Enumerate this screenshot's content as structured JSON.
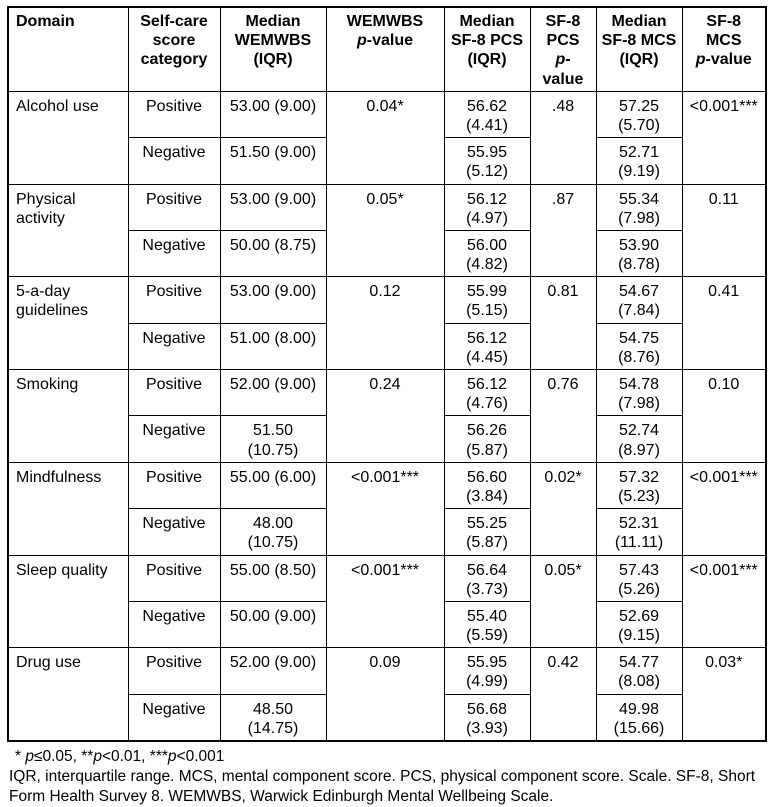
{
  "table": {
    "headers": {
      "domain": "Domain",
      "category": [
        "Self-care",
        "score",
        "category"
      ],
      "wemwbs": [
        "Median",
        "WEMWBS",
        "(IQR)"
      ],
      "wemwbs_p_line1": "WEMWBS",
      "wemwbs_p_line2_parts": [
        [
          "p",
          true
        ],
        [
          "-value",
          false
        ]
      ],
      "pcs": [
        "Median",
        "SF-8",
        "PCS",
        "(IQR)"
      ],
      "pcs_p_line1": "SF-8",
      "pcs_p_line2": "PCS",
      "pcs_p_line3_parts": [
        [
          "p",
          true
        ],
        [
          "-",
          false
        ]
      ],
      "pcs_p_line4": "value",
      "mcs": [
        "Median",
        "SF-8",
        "MCS",
        "(IQR)"
      ],
      "mcs_p_line1": "SF-8",
      "mcs_p_line2": "MCS",
      "mcs_p_line3_parts": [
        [
          "p",
          true
        ],
        [
          "-value",
          false
        ]
      ]
    },
    "rows": [
      {
        "domain": "Alcohol use",
        "positive_label": "Positive",
        "negative_label": "Negative",
        "wemwbs_pos": [
          "53.00 (9.00)"
        ],
        "wemwbs_neg": [
          "51.50 (9.00)"
        ],
        "wemwbs_p": "0.04*",
        "pcs_pos": [
          "56.62",
          "(4.41)"
        ],
        "pcs_neg": [
          "55.95",
          "(5.12)"
        ],
        "pcs_p": ".48",
        "mcs_pos": [
          "57.25",
          "(5.70)"
        ],
        "mcs_neg": [
          "52.71",
          "(9.19)"
        ],
        "mcs_p": "<0.001***"
      },
      {
        "domain": "Physical activity",
        "positive_label": "Positive",
        "negative_label": "Negative",
        "wemwbs_pos": [
          "53.00 (9.00)"
        ],
        "wemwbs_neg": [
          "50.00 (8.75)"
        ],
        "wemwbs_p": "0.05*",
        "pcs_pos": [
          "56.12",
          "(4.97)"
        ],
        "pcs_neg": [
          "56.00",
          "(4.82)"
        ],
        "pcs_p": ".87",
        "mcs_pos": [
          "55.34",
          "(7.98)"
        ],
        "mcs_neg": [
          "53.90",
          "(8.78)"
        ],
        "mcs_p": "0.11"
      },
      {
        "domain": "5-a-day guidelines",
        "positive_label": "Positive",
        "negative_label": "Negative",
        "wemwbs_pos": [
          "53.00 (9.00)"
        ],
        "wemwbs_neg": [
          "51.00 (8.00)"
        ],
        "wemwbs_p": "0.12",
        "pcs_pos": [
          "55.99",
          "(5.15)"
        ],
        "pcs_neg": [
          "56.12",
          "(4.45)"
        ],
        "pcs_p": "0.81",
        "mcs_pos": [
          "54.67",
          "(7.84)"
        ],
        "mcs_neg": [
          "54.75",
          "(8.76)"
        ],
        "mcs_p": "0.41"
      },
      {
        "domain": "Smoking",
        "positive_label": "Positive",
        "negative_label": "Negative",
        "wemwbs_pos": [
          "52.00 (9.00)"
        ],
        "wemwbs_neg": [
          "51.50",
          "(10.75)"
        ],
        "wemwbs_p": "0.24",
        "pcs_pos": [
          "56.12",
          "(4.76)"
        ],
        "pcs_neg": [
          "56.26",
          "(5.87)"
        ],
        "pcs_p": "0.76",
        "mcs_pos": [
          "54.78",
          "(7.98)"
        ],
        "mcs_neg": [
          "52.74",
          "(8.97)"
        ],
        "mcs_p": "0.10"
      },
      {
        "domain": "Mindfulness",
        "positive_label": "Positive",
        "negative_label": "Negative",
        "wemwbs_pos": [
          "55.00 (6.00)"
        ],
        "wemwbs_neg": [
          "48.00",
          "(10.75)"
        ],
        "wemwbs_p": "<0.001***",
        "pcs_pos": [
          "56.60",
          "(3.84)"
        ],
        "pcs_neg": [
          "55.25",
          "(5.87)"
        ],
        "pcs_p": "0.02*",
        "mcs_pos": [
          "57.32",
          "(5.23)"
        ],
        "mcs_neg": [
          "52.31",
          "(11.11)"
        ],
        "mcs_p": "<0.001***"
      },
      {
        "domain": "Sleep quality",
        "positive_label": "Positive",
        "negative_label": "Negative",
        "wemwbs_pos": [
          "55.00 (8.50)"
        ],
        "wemwbs_neg": [
          "50.00 (9.00)"
        ],
        "wemwbs_p": "<0.001***",
        "pcs_pos": [
          "56.64",
          "(3.73)"
        ],
        "pcs_neg": [
          "55.40",
          "(5.59)"
        ],
        "pcs_p": "0.05*",
        "mcs_pos": [
          "57.43",
          "(5.26)"
        ],
        "mcs_neg": [
          "52.69",
          "(9.15)"
        ],
        "mcs_p": "<0.001***"
      },
      {
        "domain": "Drug use",
        "positive_label": "Positive",
        "negative_label": "Negative",
        "wemwbs_pos": [
          "52.00 (9.00)"
        ],
        "wemwbs_neg": [
          "48.50",
          "(14.75)"
        ],
        "wemwbs_p": "0.09",
        "pcs_pos": [
          "55.95",
          "(4.99)"
        ],
        "pcs_neg": [
          "56.68",
          "(3.93)"
        ],
        "pcs_p": "0.42",
        "mcs_pos": [
          "54.77",
          "(8.08)"
        ],
        "mcs_neg": [
          "49.98",
          "(15.66)"
        ],
        "mcs_p": "0.03*"
      }
    ]
  },
  "footnotes": {
    "significance_parts": [
      [
        "* ",
        false
      ],
      [
        "p",
        true
      ],
      [
        "≤0.05, **",
        false
      ],
      [
        "p",
        true
      ],
      [
        "<0.01, ***",
        false
      ],
      [
        "p",
        true
      ],
      [
        "<0.001",
        false
      ]
    ],
    "abbreviations": "IQR, interquartile range. MCS, mental component score. PCS, physical component score. Scale. SF-8, Short Form Health Survey 8. WEMWBS, Warwick Edinburgh Mental Wellbeing Scale."
  }
}
